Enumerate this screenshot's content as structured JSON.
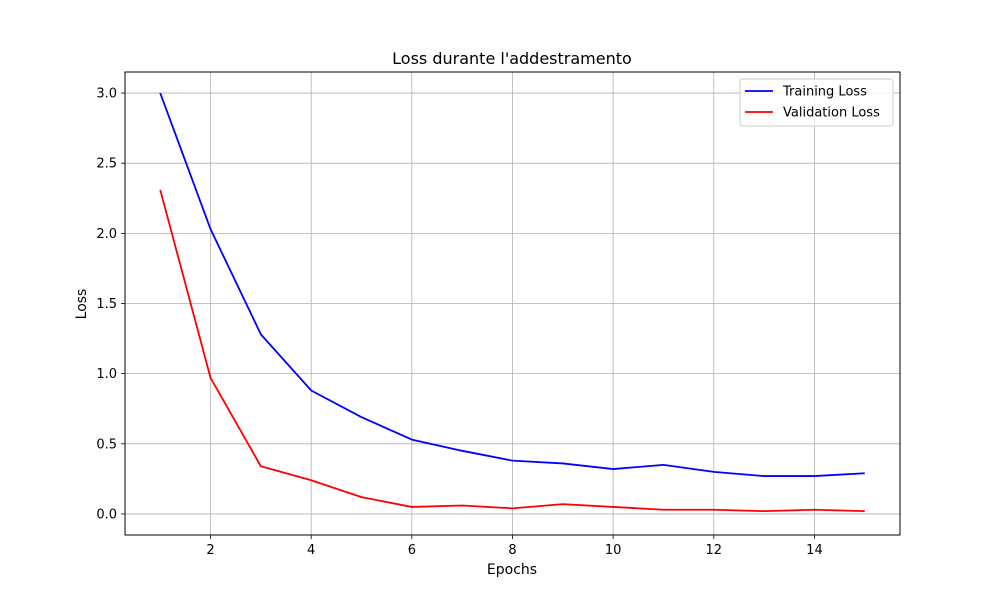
{
  "chart_data": {
    "type": "line",
    "title": "Loss durante l'addestramento",
    "xlabel": "Epochs",
    "ylabel": "Loss",
    "x": [
      1,
      2,
      3,
      4,
      5,
      6,
      7,
      8,
      9,
      10,
      11,
      12,
      13,
      14,
      15
    ],
    "xlim": [
      0.3,
      15.7
    ],
    "ylim": [
      -0.15,
      3.15
    ],
    "xticks": [
      2,
      4,
      6,
      8,
      10,
      12,
      14
    ],
    "yticks": [
      0.0,
      0.5,
      1.0,
      1.5,
      2.0,
      2.5,
      3.0
    ],
    "xtick_labels": [
      "2",
      "4",
      "6",
      "8",
      "10",
      "12",
      "14"
    ],
    "ytick_labels": [
      "0.0",
      "0.5",
      "1.0",
      "1.5",
      "2.0",
      "2.5",
      "3.0"
    ],
    "grid": true,
    "legend_position": "top-right",
    "series": [
      {
        "name": "Training Loss",
        "color": "#0000ff",
        "values": [
          3.0,
          2.03,
          1.28,
          0.88,
          0.69,
          0.53,
          0.45,
          0.38,
          0.36,
          0.32,
          0.35,
          0.3,
          0.27,
          0.27,
          0.29
        ]
      },
      {
        "name": "Validation Loss",
        "color": "#ff0000",
        "values": [
          2.31,
          0.97,
          0.34,
          0.24,
          0.12,
          0.05,
          0.06,
          0.04,
          0.07,
          0.05,
          0.03,
          0.03,
          0.02,
          0.03,
          0.02
        ]
      }
    ]
  }
}
